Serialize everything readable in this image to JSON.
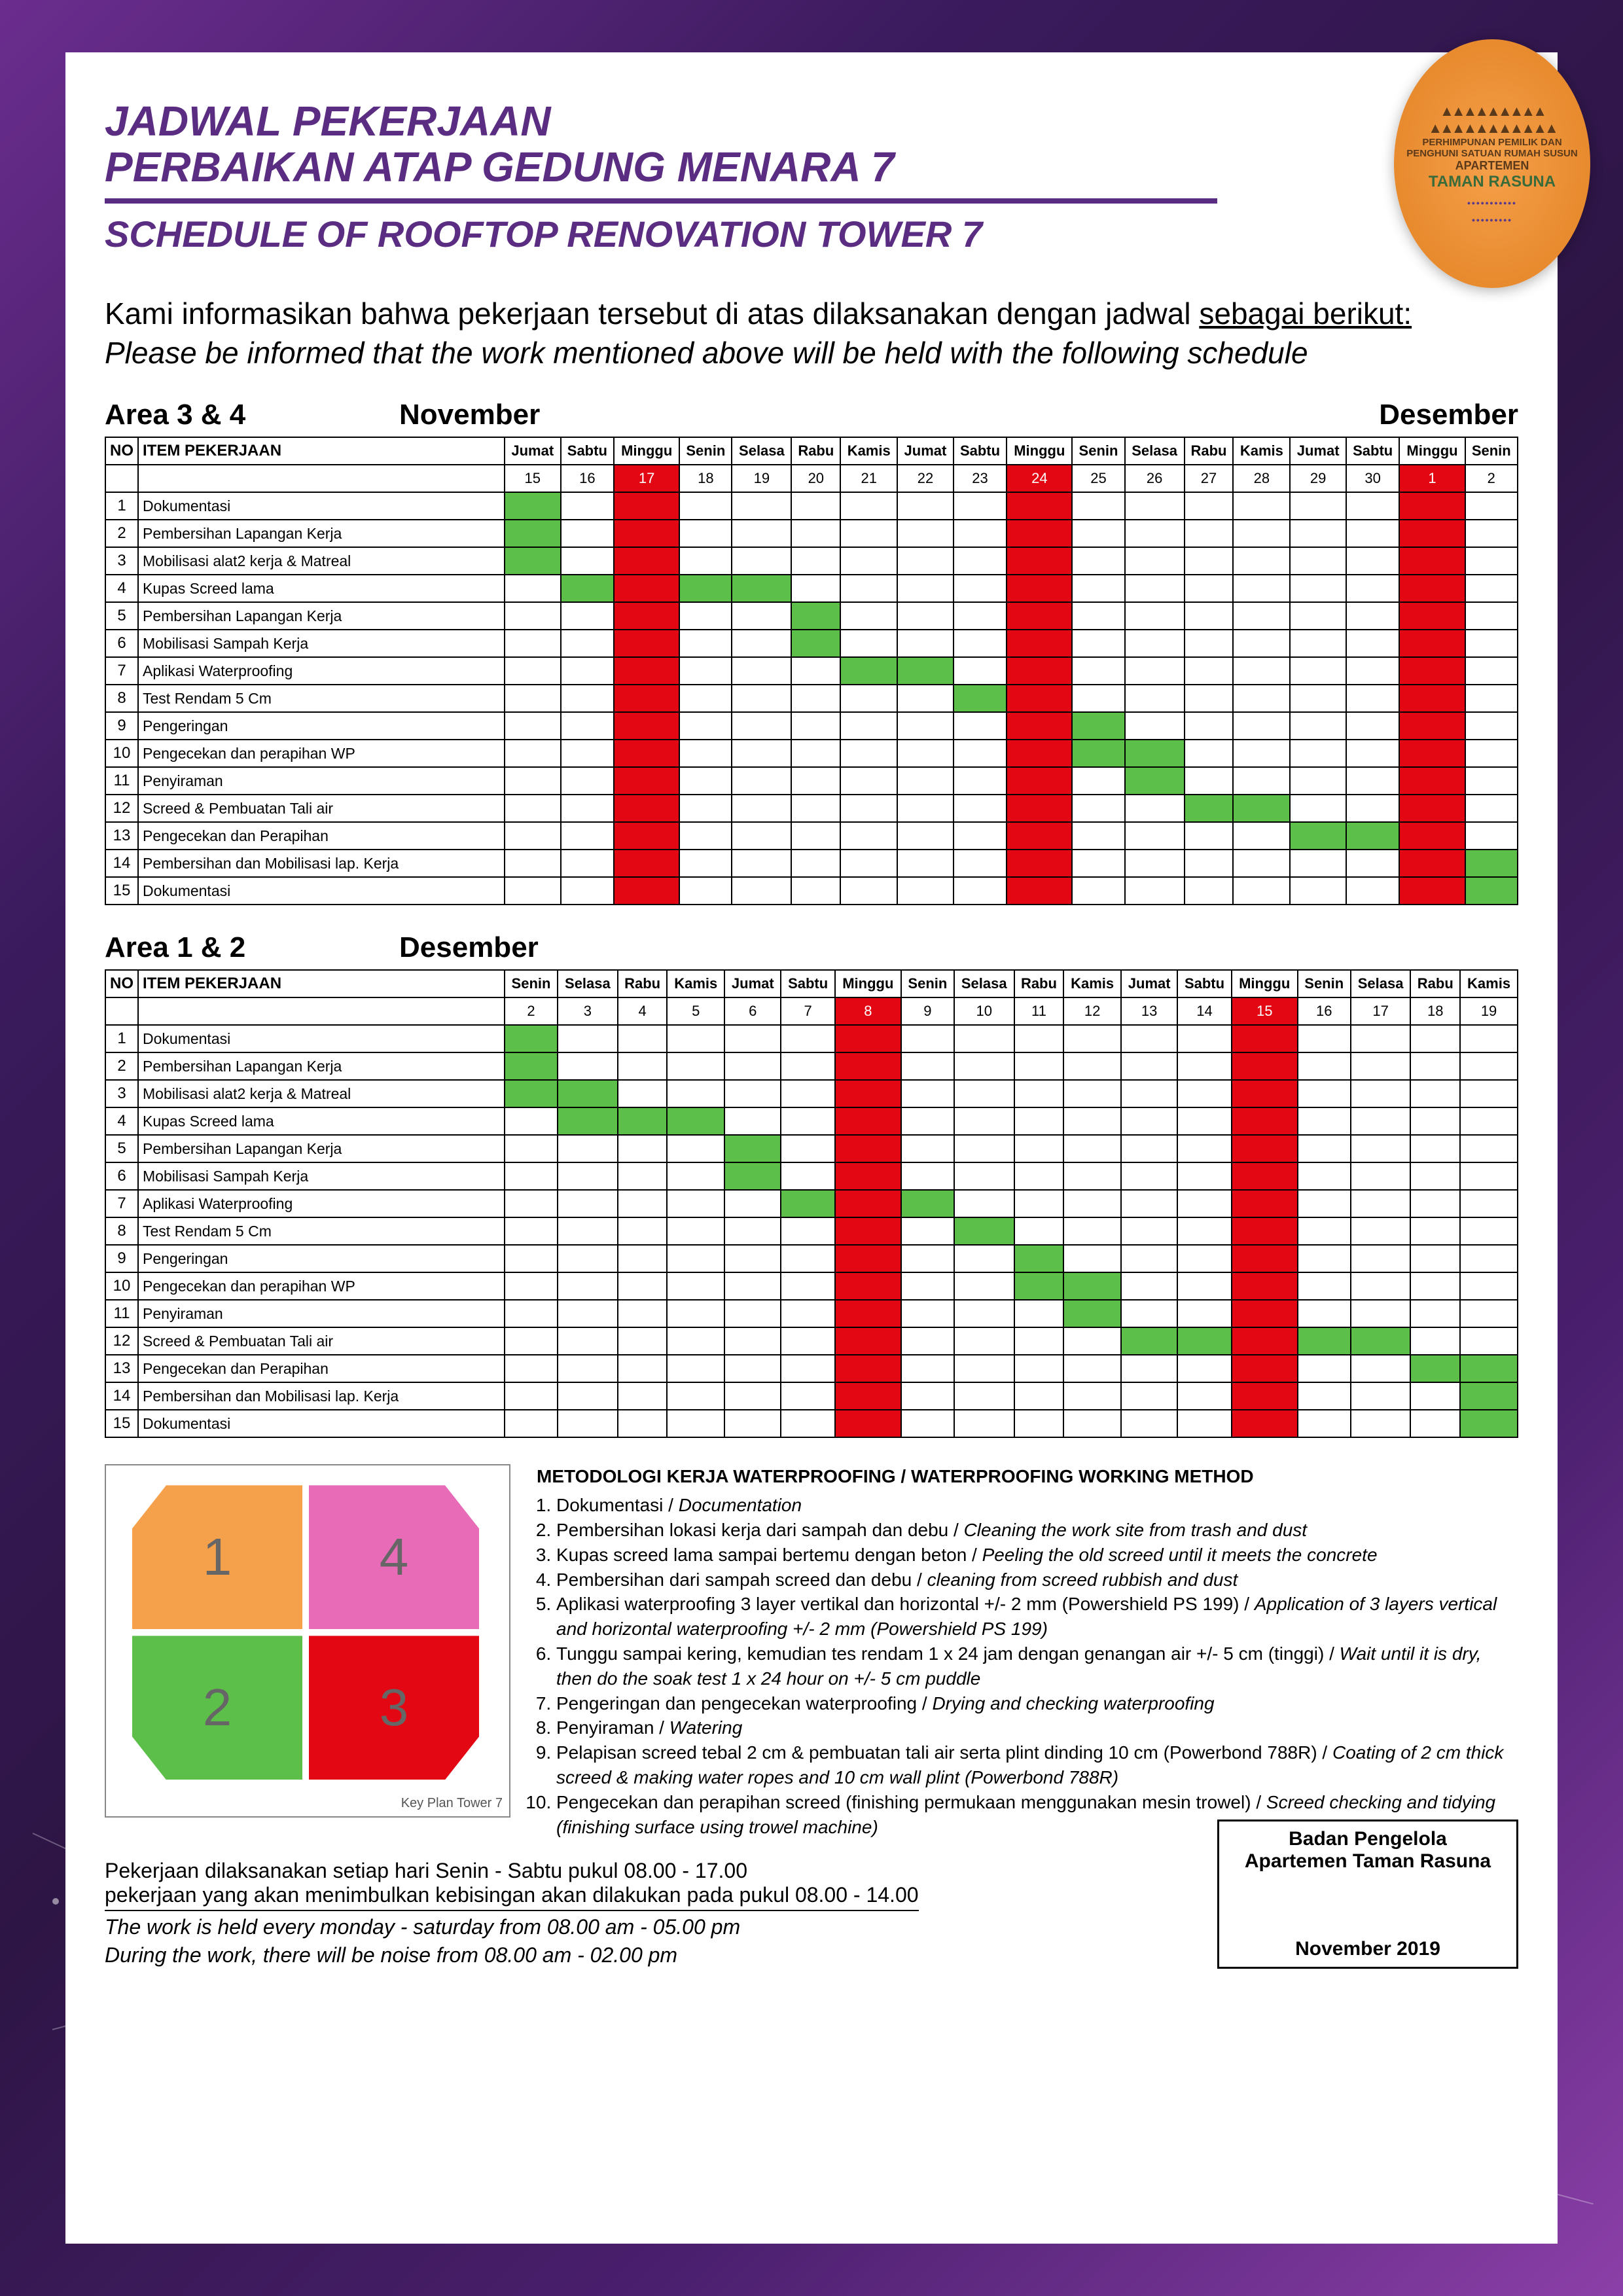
{
  "colors": {
    "green": "#5bbf4a",
    "red": "#e30613",
    "purple": "#5a2d82",
    "white": "#ffffff"
  },
  "title_id": "JADWAL PEKERJAAN\nPERBAIKAN ATAP GEDUNG MENARA 7",
  "title_en": "SCHEDULE OF ROOFTOP RENOVATION TOWER 7",
  "intro_id": "Kami informasikan bahwa pekerjaan tersebut di atas dilaksanakan dengan jadwal sebagai berikut:",
  "intro_en": "Please be informed that the work mentioned above will be held with the following schedule",
  "badge": {
    "line1": "PERHIMPUNAN PEMILIK DAN",
    "line2": "PENGHUNI SATUAN RUMAH SUSUN",
    "line3": "APARTEMEN",
    "line4": "TAMAN RASUNA"
  },
  "table_headers": {
    "no": "NO",
    "item": "ITEM PEKERJAAN"
  },
  "tables": [
    {
      "area": "Area 3 & 4",
      "month_left": "November",
      "month_right": "Desember",
      "days": [
        "Jumat",
        "Sabtu",
        "Minggu",
        "Senin",
        "Selasa",
        "Rabu",
        "Kamis",
        "Jumat",
        "Sabtu",
        "Minggu",
        "Senin",
        "Selasa",
        "Rabu",
        "Kamis",
        "Jumat",
        "Sabtu",
        "Minggu",
        "Senin"
      ],
      "dates": [
        "15",
        "16",
        "17",
        "18",
        "19",
        "20",
        "21",
        "22",
        "23",
        "24",
        "25",
        "26",
        "27",
        "28",
        "29",
        "30",
        "1",
        "2"
      ],
      "holiday_cols": [
        2,
        9,
        16
      ],
      "rows": [
        {
          "no": 1,
          "item": "Dokumentasi",
          "green": [
            0
          ]
        },
        {
          "no": 2,
          "item": "Pembersihan Lapangan Kerja",
          "green": [
            0
          ]
        },
        {
          "no": 3,
          "item": "Mobilisasi alat2 kerja & Matreal",
          "green": [
            0
          ]
        },
        {
          "no": 4,
          "item": "Kupas Screed lama",
          "green": [
            1,
            3,
            4
          ]
        },
        {
          "no": 5,
          "item": "Pembersihan Lapangan Kerja",
          "green": [
            5
          ]
        },
        {
          "no": 6,
          "item": "Mobilisasi Sampah Kerja",
          "green": [
            5
          ]
        },
        {
          "no": 7,
          "item": "Aplikasi Waterproofing",
          "green": [
            6,
            7
          ]
        },
        {
          "no": 8,
          "item": "Test Rendam 5 Cm",
          "green": [
            8
          ]
        },
        {
          "no": 9,
          "item": "Pengeringan",
          "green": [
            10
          ]
        },
        {
          "no": 10,
          "item": "Pengecekan dan perapihan WP",
          "green": [
            10,
            11
          ]
        },
        {
          "no": 11,
          "item": "Penyiraman",
          "green": [
            11
          ]
        },
        {
          "no": 12,
          "item": "Screed & Pembuatan Tali air",
          "green": [
            12,
            13
          ]
        },
        {
          "no": 13,
          "item": "Pengecekan dan Perapihan",
          "green": [
            14,
            15
          ]
        },
        {
          "no": 14,
          "item": "Pembersihan dan Mobilisasi lap. Kerja",
          "green": [
            17
          ]
        },
        {
          "no": 15,
          "item": "Dokumentasi",
          "green": [
            17
          ]
        }
      ]
    },
    {
      "area": "Area 1 & 2",
      "month_left": "Desember",
      "month_right": "",
      "days": [
        "Senin",
        "Selasa",
        "Rabu",
        "Kamis",
        "Jumat",
        "Sabtu",
        "Minggu",
        "Senin",
        "Selasa",
        "Rabu",
        "Kamis",
        "Jumat",
        "Sabtu",
        "Minggu",
        "Senin",
        "Selasa",
        "Rabu",
        "Kamis"
      ],
      "dates": [
        "2",
        "3",
        "4",
        "5",
        "6",
        "7",
        "8",
        "9",
        "10",
        "11",
        "12",
        "13",
        "14",
        "15",
        "16",
        "17",
        "18",
        "19"
      ],
      "holiday_cols": [
        6,
        13
      ],
      "rows": [
        {
          "no": 1,
          "item": "Dokumentasi",
          "green": [
            0
          ]
        },
        {
          "no": 2,
          "item": "Pembersihan Lapangan Kerja",
          "green": [
            0
          ]
        },
        {
          "no": 3,
          "item": "Mobilisasi alat2 kerja & Matreal",
          "green": [
            0,
            1
          ]
        },
        {
          "no": 4,
          "item": "Kupas Screed lama",
          "green": [
            1,
            2,
            3
          ]
        },
        {
          "no": 5,
          "item": "Pembersihan Lapangan Kerja",
          "green": [
            4
          ]
        },
        {
          "no": 6,
          "item": "Mobilisasi Sampah Kerja",
          "green": [
            4
          ]
        },
        {
          "no": 7,
          "item": "Aplikasi Waterproofing",
          "green": [
            5,
            7
          ]
        },
        {
          "no": 8,
          "item": "Test Rendam 5 Cm",
          "green": [
            8
          ]
        },
        {
          "no": 9,
          "item": "Pengeringan",
          "green": [
            9
          ]
        },
        {
          "no": 10,
          "item": "Pengecekan dan perapihan WP",
          "green": [
            9,
            10
          ]
        },
        {
          "no": 11,
          "item": "Penyiraman",
          "green": [
            10
          ]
        },
        {
          "no": 12,
          "item": "Screed & Pembuatan Tali air",
          "green": [
            11,
            12,
            14,
            15
          ]
        },
        {
          "no": 13,
          "item": "Pengecekan dan Perapihan",
          "green": [
            16,
            17
          ]
        },
        {
          "no": 14,
          "item": "Pembersihan dan Mobilisasi lap. Kerja",
          "green": [
            17
          ]
        },
        {
          "no": 15,
          "item": "Dokumentasi",
          "green": [
            17
          ]
        }
      ]
    }
  ],
  "method": {
    "title": "METODOLOGI KERJA WATERPROOFING / WATERPROOFING WORKING METHOD",
    "items": [
      {
        "id": "Dokumentasi",
        "en": "Documentation"
      },
      {
        "id": "Pembersihan lokasi kerja dari sampah dan debu",
        "en": "Cleaning the work site from trash and dust"
      },
      {
        "id": "Kupas screed lama sampai bertemu dengan beton",
        "en": "Peeling the old screed until it meets the concrete"
      },
      {
        "id": "Pembersihan dari sampah screed dan debu",
        "en": "cleaning from screed rubbish and dust"
      },
      {
        "id": "Aplikasi waterproofing 3 layer vertikal dan horizontal +/- 2 mm (Powershield PS 199)",
        "en": "Application of 3 layers vertical and horizontal waterproofing +/- 2 mm (Powershield PS 199)"
      },
      {
        "id": "Tunggu sampai kering, kemudian tes rendam 1 x 24 jam dengan genangan air +/- 5 cm (tinggi)",
        "en": "Wait until it is dry, then do the soak test 1 x 24 hour on +/-  5 cm puddle"
      },
      {
        "id": "Pengeringan dan pengecekan waterproofing",
        "en": "Drying and checking waterproofing"
      },
      {
        "id": "Penyiraman",
        "en": "Watering"
      },
      {
        "id": "Pelapisan screed tebal 2 cm & pembuatan tali air serta plint dinding 10 cm (Powerbond 788R)",
        "en": "Coating of 2 cm thick screed & making water ropes and 10 cm wall plint (Powerbond 788R)"
      },
      {
        "id": "Pengecekan dan perapihan screed (finishing permukaan menggunakan mesin trowel)",
        "en": "Screed checking and  tidying (finishing surface using trowel machine)"
      }
    ]
  },
  "floorplan_caption": "Key Plan Tower 7",
  "footer": {
    "id1": "Pekerjaan dilaksanakan setiap hari Senin - Sabtu pukul 08.00 - 17.00",
    "id2": "pekerjaan yang akan menimbulkan kebisingan akan dilakukan pada pukul 08.00 - 14.00",
    "en1": "The work is held every monday - saturday from 08.00 am - 05.00 pm",
    "en2": "During the work, there will be noise from 08.00 am - 02.00 pm",
    "sign1": "Badan Pengelola",
    "sign2": "Apartemen Taman Rasuna",
    "date": "November 2019"
  }
}
